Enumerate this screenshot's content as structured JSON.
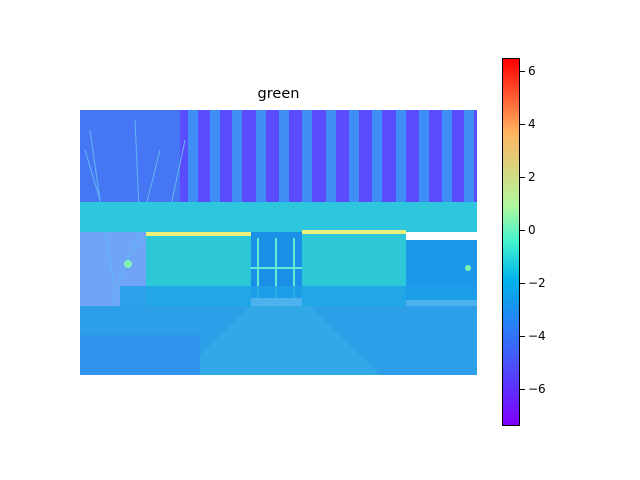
{
  "chart_data": {
    "type": "heatmap",
    "title": "green",
    "xlabel": "",
    "ylabel": "",
    "colormap": "rainbow",
    "colorbar": {
      "min": -7.4,
      "max": 6.5,
      "ticks": [
        6,
        4,
        2,
        0,
        -2,
        -4,
        -6
      ],
      "tick_labels": [
        "6",
        "4",
        "2",
        "0",
        "−2",
        "−4",
        "−6"
      ]
    },
    "axes_visible": false
  }
}
